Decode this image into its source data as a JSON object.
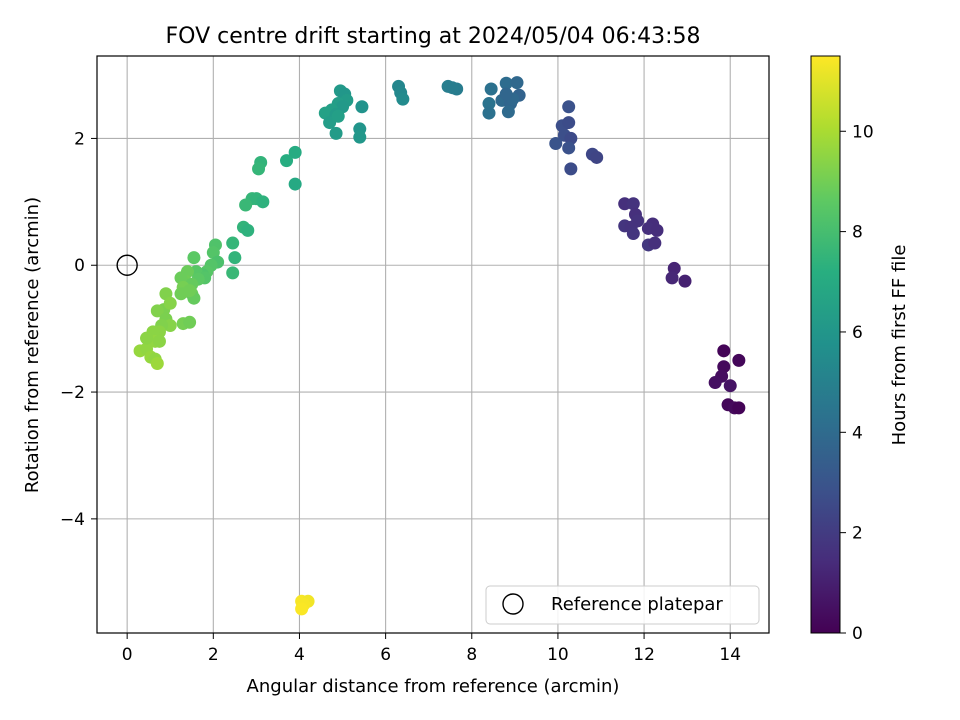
{
  "chart_data": {
    "type": "scatter",
    "title": "FOV centre drift starting at 2024/05/04 06:43:58",
    "xlabel": "Angular distance from reference (arcmin)",
    "ylabel": "Rotation from reference (arcmin)",
    "xlim": [
      -0.7,
      14.9
    ],
    "ylim": [
      -5.8,
      3.3
    ],
    "xticks": [
      0,
      2,
      4,
      6,
      8,
      10,
      12,
      14
    ],
    "yticks": [
      -4,
      -2,
      0,
      2
    ],
    "grid": true,
    "legend": {
      "placement": "lower right",
      "entries": [
        "Reference platepar"
      ]
    },
    "reference_point": {
      "x": 0,
      "y": 0,
      "marker": "open circle"
    },
    "colorbar": {
      "label": "Hours from first FF file",
      "min": 0,
      "max": 11.5,
      "ticks": [
        0,
        2,
        4,
        6,
        8,
        10
      ],
      "colormap": "viridis"
    },
    "points": [
      {
        "x": 13.85,
        "y": -1.35,
        "t": 0.1
      },
      {
        "x": 14.2,
        "y": -1.5,
        "t": 0.2
      },
      {
        "x": 13.85,
        "y": -1.6,
        "t": 0.3
      },
      {
        "x": 13.8,
        "y": -1.75,
        "t": 0.4
      },
      {
        "x": 13.65,
        "y": -1.85,
        "t": 0.5
      },
      {
        "x": 14.0,
        "y": -1.9,
        "t": 0.6
      },
      {
        "x": 13.95,
        "y": -2.2,
        "t": 0.2
      },
      {
        "x": 14.1,
        "y": -2.25,
        "t": 0.3
      },
      {
        "x": 14.2,
        "y": -2.25,
        "t": 0.1
      },
      {
        "x": 12.7,
        "y": -0.05,
        "t": 1.2
      },
      {
        "x": 12.65,
        "y": -0.2,
        "t": 1.3
      },
      {
        "x": 12.95,
        "y": -0.25,
        "t": 1.1
      },
      {
        "x": 11.55,
        "y": 0.97,
        "t": 1.6
      },
      {
        "x": 11.75,
        "y": 0.97,
        "t": 1.7
      },
      {
        "x": 11.8,
        "y": 0.8,
        "t": 1.6
      },
      {
        "x": 11.85,
        "y": 0.7,
        "t": 1.7
      },
      {
        "x": 11.55,
        "y": 0.62,
        "t": 1.8
      },
      {
        "x": 11.7,
        "y": 0.6,
        "t": 1.7
      },
      {
        "x": 12.2,
        "y": 0.65,
        "t": 1.5
      },
      {
        "x": 12.1,
        "y": 0.58,
        "t": 1.6
      },
      {
        "x": 11.75,
        "y": 0.5,
        "t": 1.8
      },
      {
        "x": 12.3,
        "y": 0.55,
        "t": 1.5
      },
      {
        "x": 12.1,
        "y": 0.32,
        "t": 1.9
      },
      {
        "x": 12.25,
        "y": 0.35,
        "t": 1.6
      },
      {
        "x": 10.25,
        "y": 2.5,
        "t": 2.9
      },
      {
        "x": 10.1,
        "y": 2.2,
        "t": 2.8
      },
      {
        "x": 10.25,
        "y": 2.25,
        "t": 2.7
      },
      {
        "x": 10.15,
        "y": 2.05,
        "t": 2.8
      },
      {
        "x": 10.3,
        "y": 2.0,
        "t": 2.6
      },
      {
        "x": 9.95,
        "y": 1.92,
        "t": 3.0
      },
      {
        "x": 10.25,
        "y": 1.85,
        "t": 2.9
      },
      {
        "x": 10.8,
        "y": 1.75,
        "t": 2.5
      },
      {
        "x": 10.9,
        "y": 1.7,
        "t": 2.4
      },
      {
        "x": 10.3,
        "y": 1.52,
        "t": 2.7
      },
      {
        "x": 8.45,
        "y": 2.78,
        "t": 4.3
      },
      {
        "x": 8.8,
        "y": 2.87,
        "t": 4.1
      },
      {
        "x": 9.05,
        "y": 2.88,
        "t": 3.9
      },
      {
        "x": 8.7,
        "y": 2.6,
        "t": 4.0
      },
      {
        "x": 8.9,
        "y": 2.55,
        "t": 3.8
      },
      {
        "x": 9.1,
        "y": 2.68,
        "t": 3.7
      },
      {
        "x": 8.4,
        "y": 2.55,
        "t": 4.4
      },
      {
        "x": 8.95,
        "y": 2.62,
        "t": 3.9
      },
      {
        "x": 8.4,
        "y": 2.4,
        "t": 4.3
      },
      {
        "x": 8.85,
        "y": 2.42,
        "t": 4.0
      },
      {
        "x": 8.8,
        "y": 2.7,
        "t": 3.8
      },
      {
        "x": 7.45,
        "y": 2.82,
        "t": 4.9
      },
      {
        "x": 7.65,
        "y": 2.78,
        "t": 4.8
      },
      {
        "x": 7.55,
        "y": 2.8,
        "t": 4.85
      },
      {
        "x": 6.3,
        "y": 2.82,
        "t": 5.3
      },
      {
        "x": 6.35,
        "y": 2.72,
        "t": 5.4
      },
      {
        "x": 6.4,
        "y": 2.62,
        "t": 5.5
      },
      {
        "x": 4.95,
        "y": 2.75,
        "t": 6.2
      },
      {
        "x": 5.05,
        "y": 2.7,
        "t": 6.1
      },
      {
        "x": 5.1,
        "y": 2.6,
        "t": 6.3
      },
      {
        "x": 4.9,
        "y": 2.55,
        "t": 6.4
      },
      {
        "x": 5.0,
        "y": 2.5,
        "t": 6.2
      },
      {
        "x": 5.45,
        "y": 2.5,
        "t": 5.9
      },
      {
        "x": 4.75,
        "y": 2.45,
        "t": 6.5
      },
      {
        "x": 4.6,
        "y": 2.4,
        "t": 6.6
      },
      {
        "x": 4.85,
        "y": 2.38,
        "t": 6.3
      },
      {
        "x": 4.7,
        "y": 2.25,
        "t": 6.4
      },
      {
        "x": 4.9,
        "y": 2.35,
        "t": 6.5
      },
      {
        "x": 5.4,
        "y": 2.15,
        "t": 6.0
      },
      {
        "x": 4.85,
        "y": 2.08,
        "t": 6.3
      },
      {
        "x": 5.4,
        "y": 2.02,
        "t": 6.1
      },
      {
        "x": 3.9,
        "y": 1.78,
        "t": 7.1
      },
      {
        "x": 3.7,
        "y": 1.65,
        "t": 7.2
      },
      {
        "x": 3.1,
        "y": 1.62,
        "t": 7.5
      },
      {
        "x": 3.05,
        "y": 1.52,
        "t": 7.6
      },
      {
        "x": 3.9,
        "y": 1.28,
        "t": 7.0
      },
      {
        "x": 2.9,
        "y": 1.05,
        "t": 7.6
      },
      {
        "x": 3.0,
        "y": 1.05,
        "t": 7.5
      },
      {
        "x": 3.15,
        "y": 1.0,
        "t": 7.4
      },
      {
        "x": 2.75,
        "y": 0.95,
        "t": 7.7
      },
      {
        "x": 2.7,
        "y": 0.6,
        "t": 7.5
      },
      {
        "x": 2.8,
        "y": 0.55,
        "t": 7.4
      },
      {
        "x": 2.45,
        "y": 0.35,
        "t": 7.6
      },
      {
        "x": 2.5,
        "y": 0.12,
        "t": 7.5
      },
      {
        "x": 2.45,
        "y": -0.12,
        "t": 7.7
      },
      {
        "x": 2.05,
        "y": 0.32,
        "t": 8.3
      },
      {
        "x": 2.0,
        "y": 0.2,
        "t": 8.4
      },
      {
        "x": 2.1,
        "y": 0.05,
        "t": 8.2
      },
      {
        "x": 1.95,
        "y": 0.0,
        "t": 8.4
      },
      {
        "x": 1.85,
        "y": -0.1,
        "t": 8.5
      },
      {
        "x": 1.75,
        "y": -0.15,
        "t": 8.3
      },
      {
        "x": 1.6,
        "y": -0.1,
        "t": 8.5
      },
      {
        "x": 1.55,
        "y": 0.12,
        "t": 8.6
      },
      {
        "x": 1.8,
        "y": -0.2,
        "t": 8.4
      },
      {
        "x": 1.65,
        "y": -0.22,
        "t": 8.6
      },
      {
        "x": 1.4,
        "y": -0.1,
        "t": 8.9
      },
      {
        "x": 1.35,
        "y": -0.25,
        "t": 9.0
      },
      {
        "x": 1.25,
        "y": -0.2,
        "t": 8.9
      },
      {
        "x": 1.5,
        "y": -0.3,
        "t": 8.8
      },
      {
        "x": 1.3,
        "y": -0.35,
        "t": 9.1
      },
      {
        "x": 1.5,
        "y": -0.45,
        "t": 8.9
      },
      {
        "x": 1.25,
        "y": -0.45,
        "t": 9.0
      },
      {
        "x": 1.55,
        "y": -0.52,
        "t": 8.8
      },
      {
        "x": 1.45,
        "y": -0.4,
        "t": 9.0
      },
      {
        "x": 0.9,
        "y": -0.45,
        "t": 9.3
      },
      {
        "x": 0.85,
        "y": -0.7,
        "t": 9.2
      },
      {
        "x": 1.0,
        "y": -0.6,
        "t": 9.4
      },
      {
        "x": 0.7,
        "y": -0.72,
        "t": 9.3
      },
      {
        "x": 0.9,
        "y": -0.85,
        "t": 9.2
      },
      {
        "x": 1.0,
        "y": -0.95,
        "t": 9.4
      },
      {
        "x": 0.8,
        "y": -0.95,
        "t": 9.3
      },
      {
        "x": 0.75,
        "y": -1.05,
        "t": 9.5
      },
      {
        "x": 1.3,
        "y": -0.92,
        "t": 9.1
      },
      {
        "x": 1.45,
        "y": -0.9,
        "t": 9.0
      },
      {
        "x": 0.6,
        "y": -1.05,
        "t": 9.5
      },
      {
        "x": 0.65,
        "y": -1.2,
        "t": 9.6
      },
      {
        "x": 0.75,
        "y": -1.2,
        "t": 9.5
      },
      {
        "x": 0.3,
        "y": -1.35,
        "t": 9.7
      },
      {
        "x": 0.45,
        "y": -1.32,
        "t": 9.6
      },
      {
        "x": 0.55,
        "y": -1.45,
        "t": 9.7
      },
      {
        "x": 0.65,
        "y": -1.48,
        "t": 9.6
      },
      {
        "x": 0.7,
        "y": -1.55,
        "t": 9.8
      },
      {
        "x": 0.45,
        "y": -1.15,
        "t": 9.5
      },
      {
        "x": 4.05,
        "y": -5.3,
        "t": 11.4
      },
      {
        "x": 4.2,
        "y": -5.3,
        "t": 11.3
      },
      {
        "x": 4.1,
        "y": -5.35,
        "t": 11.4
      },
      {
        "x": 4.05,
        "y": -5.42,
        "t": 11.45
      }
    ]
  }
}
